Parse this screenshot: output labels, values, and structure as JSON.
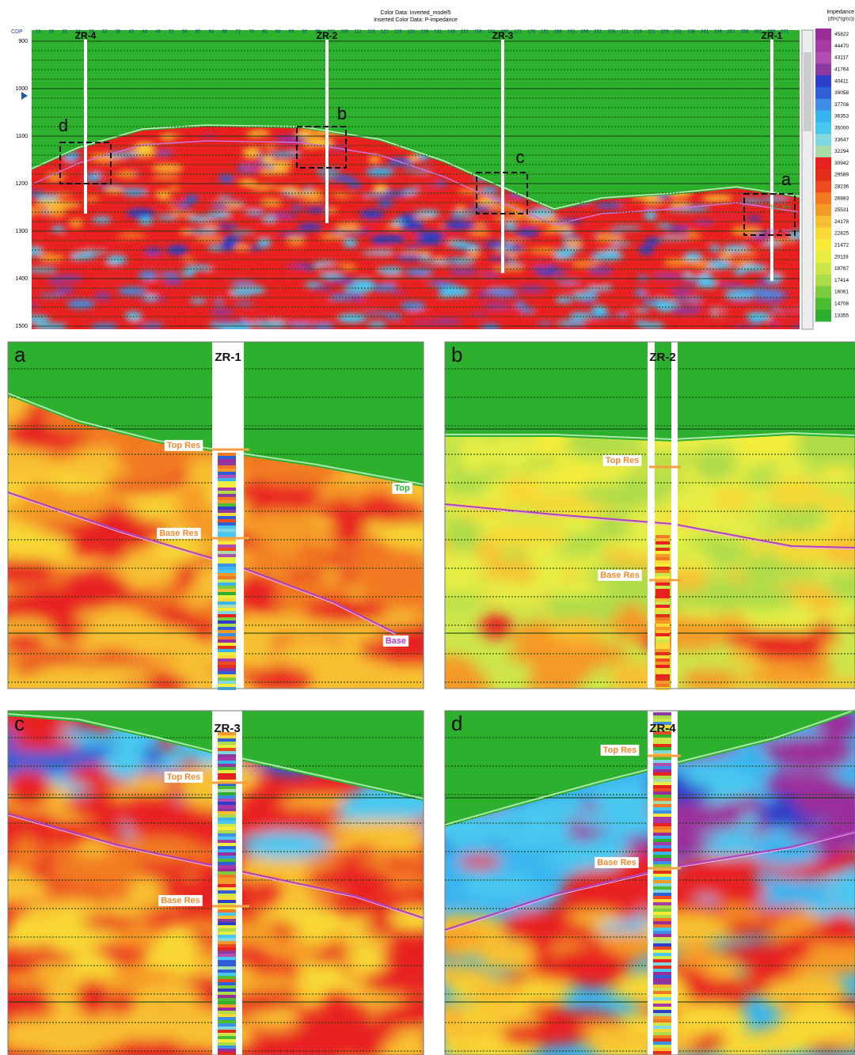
{
  "header": {
    "color_data": "Color Data: inverted_model5",
    "inserted_color_data": "Inserted Color Data: P-impedance"
  },
  "section": {
    "cdp_label": "CDP",
    "cdp_ticks": [
      "13",
      "16",
      "20",
      "24",
      "28",
      "32",
      "36",
      "40",
      "44",
      "48",
      "52",
      "56",
      "60",
      "64",
      "68",
      "72",
      "76",
      "80",
      "84",
      "88",
      "92",
      "96",
      "101",
      "106",
      "111",
      "116",
      "121",
      "126",
      "131",
      "136",
      "141",
      "146",
      "151",
      "156",
      "161",
      "166",
      "171",
      "176",
      "181",
      "186",
      "191",
      "196",
      "201",
      "206",
      "211",
      "216",
      "221",
      "226",
      "231",
      "236",
      "241",
      "246",
      "251",
      "256",
      "261",
      "266",
      "271"
    ],
    "time_ticks": [
      900,
      1000,
      1100,
      1200,
      1300,
      1400,
      1500
    ],
    "wells": [
      "ZR-4",
      "ZR-2",
      "ZR-3",
      "ZR-1"
    ],
    "boxes": [
      "d",
      "b",
      "c",
      "a"
    ],
    "horizons": [
      "Top_Res",
      "Base_Res"
    ]
  },
  "colorbar": {
    "title": "Impedance",
    "unit": "((ft/s)*(g/cc))",
    "values": [
      45822,
      44470,
      43117,
      41764,
      40411,
      39058,
      37706,
      36353,
      35000,
      33647,
      32294,
      30942,
      29589,
      28236,
      26883,
      25531,
      24178,
      22825,
      21472,
      20119,
      18767,
      17414,
      16061,
      14708,
      13355
    ]
  },
  "panels": [
    {
      "letter": "a",
      "well": "ZR-1",
      "top": "Top Res",
      "base": "Base Res",
      "extra": [
        "Top",
        "Base"
      ]
    },
    {
      "letter": "b",
      "well": "ZR-2",
      "top": "Top Res",
      "base": "Base Res"
    },
    {
      "letter": "c",
      "well": "ZR-3",
      "top": "Top Res",
      "base": "Base Res"
    },
    {
      "letter": "d",
      "well": "ZR-4",
      "top": "Top Res",
      "base": "Base Res"
    }
  ]
}
